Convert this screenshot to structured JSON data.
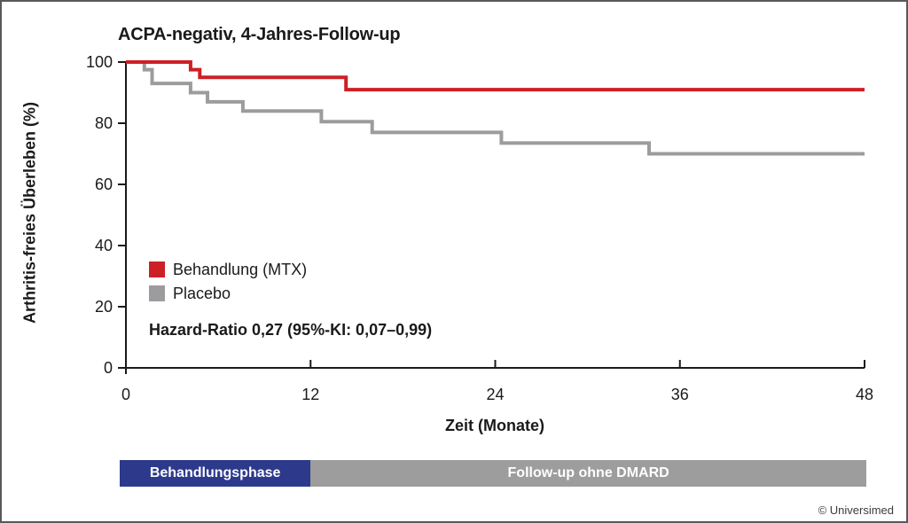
{
  "copyright": "© Universimed",
  "chart_data": {
    "type": "line",
    "subtype": "kaplan-meier-step",
    "title": "ACPA-negativ, 4-Jahres-Follow-up",
    "xlabel": "Zeit (Monate)",
    "ylabel": "Arthritis-freies Überleben (%)",
    "xlim": [
      0,
      48
    ],
    "ylim": [
      0,
      100
    ],
    "xticks": [
      "0",
      "12",
      "24",
      "36",
      "48"
    ],
    "yticks": [
      "0",
      "20",
      "40",
      "60",
      "80",
      "100"
    ],
    "grid": "off",
    "legend_position": "inside-left",
    "axis_color": "#1a1a1a",
    "annotation": "Hazard-Ratio 0,27 (95%-KI: 0,07–0,99)",
    "series": [
      {
        "name": "Behandlung (MTX)",
        "color": "#cc2026",
        "points": [
          [
            0,
            100
          ],
          [
            4.2,
            100
          ],
          [
            4.2,
            97.5
          ],
          [
            4.8,
            97.5
          ],
          [
            4.8,
            95
          ],
          [
            14.3,
            95
          ],
          [
            14.3,
            91
          ],
          [
            48,
            91
          ]
        ]
      },
      {
        "name": "Placebo",
        "color": "#9c9c9e",
        "points": [
          [
            0,
            100
          ],
          [
            1.2,
            100
          ],
          [
            1.2,
            97.5
          ],
          [
            1.7,
            97.5
          ],
          [
            1.7,
            93
          ],
          [
            4.2,
            93
          ],
          [
            4.2,
            90
          ],
          [
            5.3,
            90
          ],
          [
            5.3,
            87
          ],
          [
            7.6,
            87
          ],
          [
            7.6,
            84
          ],
          [
            12.7,
            84
          ],
          [
            12.7,
            80.5
          ],
          [
            16,
            80.5
          ],
          [
            16,
            77
          ],
          [
            24.4,
            77
          ],
          [
            24.4,
            73.5
          ],
          [
            34,
            73.5
          ],
          [
            34,
            70
          ],
          [
            48,
            70
          ]
        ]
      }
    ],
    "phase_bar": [
      {
        "label": "Behandlungsphase",
        "from": 0,
        "to": 12,
        "color": "#2d3a8c",
        "text_color": "#ffffff"
      },
      {
        "label": "Follow-up ohne DMARD",
        "from": 12,
        "to": 48,
        "color": "#9d9d9d",
        "text_color": "#ffffff"
      }
    ]
  }
}
